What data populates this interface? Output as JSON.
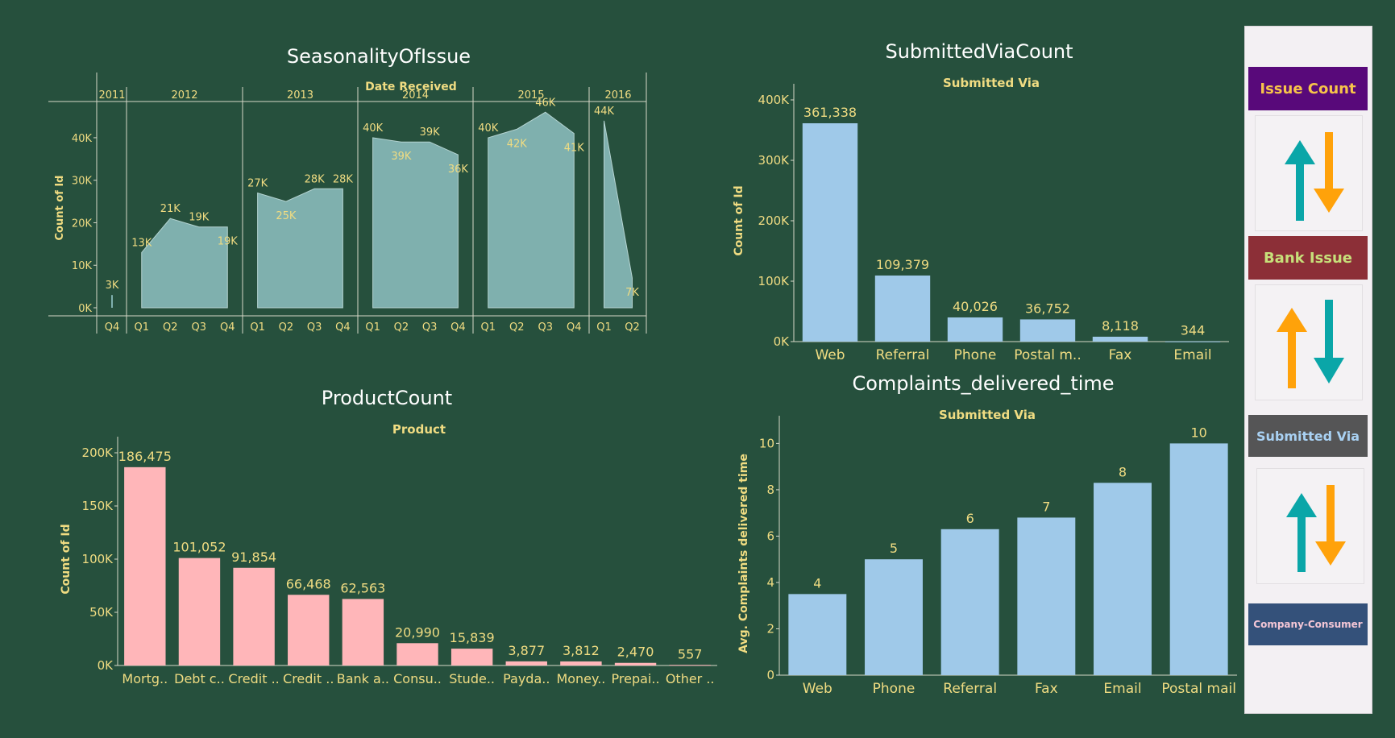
{
  "seasonality": {
    "title": "SeasonalityOfIssue",
    "subtitle": "Date Received",
    "ylabel": "Count of Id",
    "yticks": [
      "40K",
      "30K",
      "20K",
      "10K",
      "0K"
    ]
  },
  "submitted_via_count": {
    "title": "SubmittedViaCount",
    "subtitle": "Submitted Via",
    "ylabel": "Count of Id",
    "yticks": [
      "400K",
      "300K",
      "200K",
      "100K",
      "0K"
    ]
  },
  "product_count": {
    "title": "ProductCount",
    "subtitle": "Product",
    "ylabel": "Count of Id",
    "yticks": [
      "200K",
      "150K",
      "100K",
      "50K",
      "0K"
    ]
  },
  "complaints_time": {
    "title": "Complaints_delivered_time",
    "subtitle": "Submitted Via",
    "ylabel": "Avg. Complaints delivered time",
    "yticks": [
      "10",
      "8",
      "6",
      "4",
      "2",
      "0"
    ]
  },
  "sidebar": {
    "issue_count": "Issue Count",
    "bank_issue": "Bank Issue",
    "submitted_via": "Submitted Via",
    "company_consumer": "Company-Consumer"
  },
  "colors": {
    "background": "#26503d",
    "area_fill": "#7fb0ae",
    "blue_bar": "#9fc9e9",
    "pink_bar": "#ffb6b9",
    "label": "#f0dc82",
    "arrow_teal": "#0aa6a8",
    "arrow_orange": "#ffa20a"
  },
  "chart_data": [
    {
      "name": "SeasonalityOfIssue",
      "type": "area",
      "x_field": "Date Received",
      "ylim": [
        0,
        47000
      ],
      "years": [
        {
          "year": "2011",
          "quarters": [
            "Q4"
          ],
          "values": [
            3000
          ],
          "labels": [
            "3K"
          ]
        },
        {
          "year": "2012",
          "quarters": [
            "Q1",
            "Q2",
            "Q3",
            "Q4"
          ],
          "values": [
            13000,
            21000,
            19000,
            19000
          ],
          "labels": [
            "13K",
            "21K",
            "19K",
            "19K"
          ]
        },
        {
          "year": "2013",
          "quarters": [
            "Q1",
            "Q2",
            "Q3",
            "Q4"
          ],
          "values": [
            27000,
            25000,
            28000,
            28000
          ],
          "labels": [
            "27K",
            "25K",
            "28K",
            "28K"
          ]
        },
        {
          "year": "2014",
          "quarters": [
            "Q1",
            "Q2",
            "Q3",
            "Q4"
          ],
          "values": [
            40000,
            39000,
            39000,
            36000
          ],
          "labels": [
            "40K",
            "39K",
            "39K",
            "36K"
          ]
        },
        {
          "year": "2015",
          "quarters": [
            "Q1",
            "Q2",
            "Q3",
            "Q4"
          ],
          "values": [
            40000,
            42000,
            46000,
            41000
          ],
          "labels": [
            "40K",
            "42K",
            "46K",
            "41K"
          ]
        },
        {
          "year": "2016",
          "quarters": [
            "Q1",
            "Q2"
          ],
          "values": [
            44000,
            7000
          ],
          "labels": [
            "44K",
            "7K"
          ]
        }
      ]
    },
    {
      "name": "SubmittedViaCount",
      "type": "bar",
      "categories": [
        "Web",
        "Referral",
        "Phone",
        "Postal m..",
        "Fax",
        "Email"
      ],
      "values": [
        361338,
        109379,
        40026,
        36752,
        8118,
        344
      ],
      "labels": [
        "361,338",
        "109,379",
        "40,026",
        "36,752",
        "8,118",
        "344"
      ],
      "ylim": [
        0,
        400000
      ]
    },
    {
      "name": "ProductCount",
      "type": "bar",
      "categories": [
        "Mortg..",
        "Debt c..",
        "Credit ..",
        "Credit ..",
        "Bank a..",
        "Consu..",
        "Stude..",
        "Payda..",
        "Money..",
        "Prepai..",
        "Other .."
      ],
      "values": [
        186475,
        101052,
        91854,
        66468,
        62563,
        20990,
        15839,
        3877,
        3812,
        2470,
        557
      ],
      "labels": [
        "186,475",
        "101,052",
        "91,854",
        "66,468",
        "62,563",
        "20,990",
        "15,839",
        "3,877",
        "3,812",
        "2,470",
        "557"
      ],
      "ylim": [
        0,
        200000
      ]
    },
    {
      "name": "Complaints_delivered_time",
      "type": "bar",
      "categories": [
        "Web",
        "Phone",
        "Referral",
        "Fax",
        "Email",
        "Postal mail"
      ],
      "values": [
        3.5,
        5.0,
        6.3,
        6.8,
        8.3,
        10.0
      ],
      "labels": [
        "4",
        "5",
        "6",
        "7",
        "8",
        "10"
      ],
      "ylim": [
        0,
        10.5
      ]
    }
  ]
}
